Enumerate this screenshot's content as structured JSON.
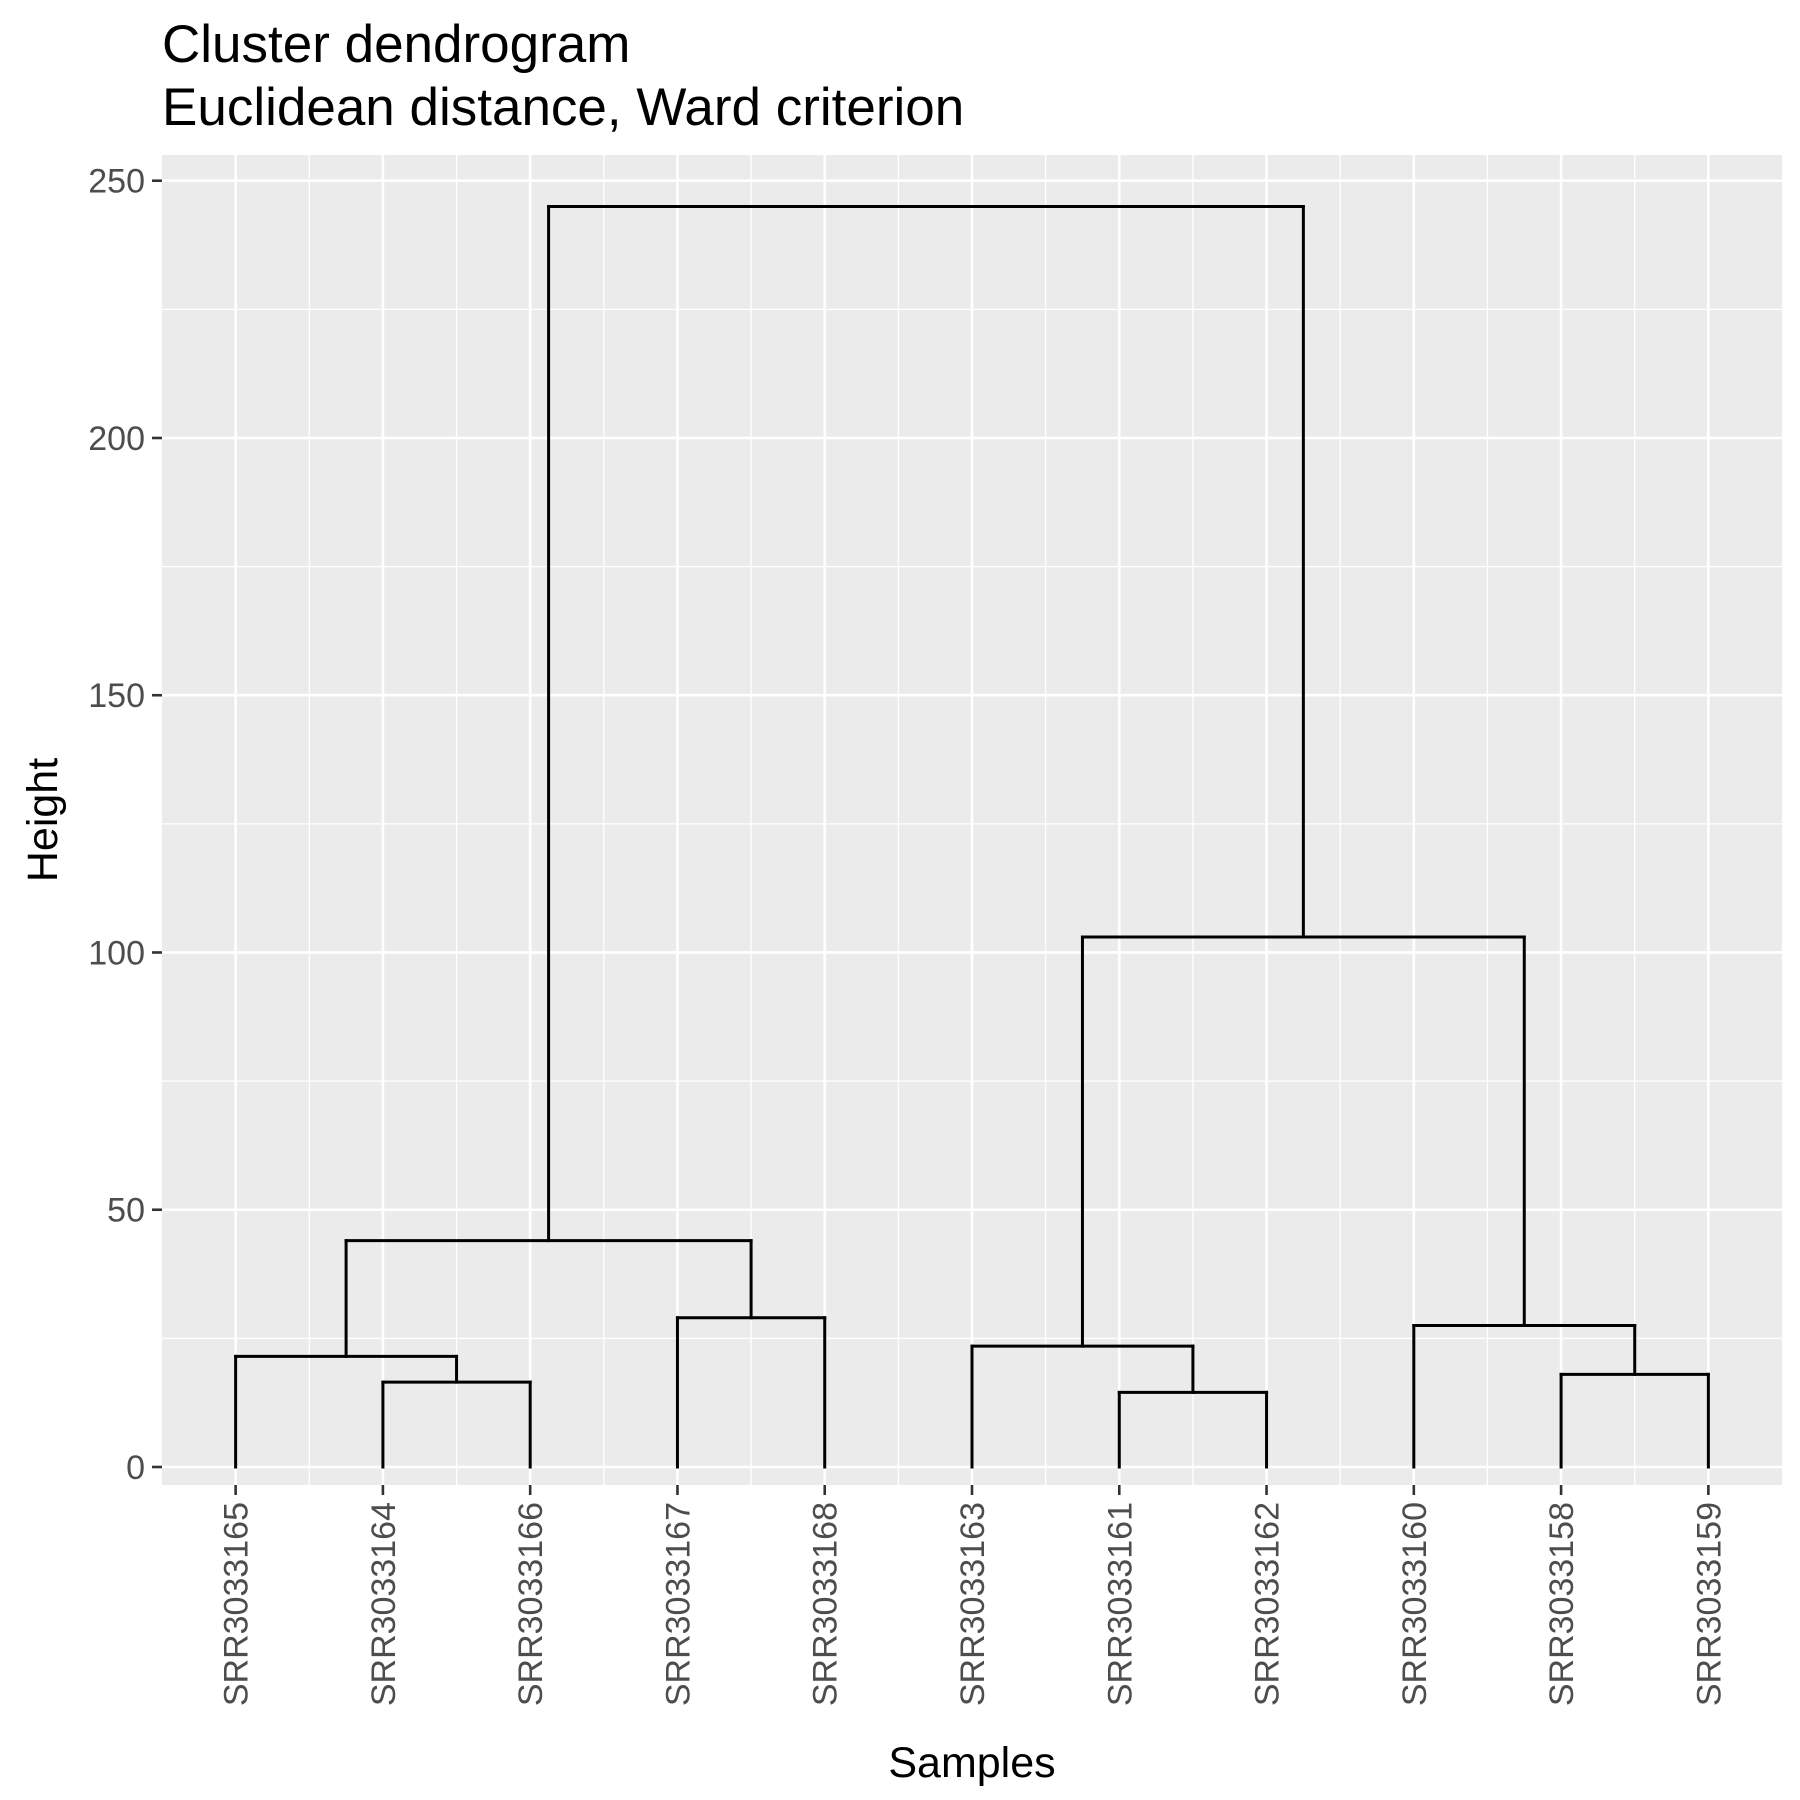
{
  "chart_data": {
    "type": "dendrogram",
    "title": "Cluster dendrogram",
    "subtitle": "Euclidean distance, Ward criterion",
    "xlabel": "Samples",
    "ylabel": "Height",
    "ylim": [
      -3.5,
      255
    ],
    "yticks": [
      0,
      50,
      100,
      150,
      200,
      250
    ],
    "grid": true,
    "leaves": [
      "SRR3033165",
      "SRR3033164",
      "SRR3033166",
      "SRR3033167",
      "SRR3033168",
      "SRR3033163",
      "SRR3033161",
      "SRR3033162",
      "SRR3033160",
      "SRR3033158",
      "SRR3033159"
    ],
    "merges": [
      {
        "id": "m1",
        "children": [
          "SRR3033164",
          "SRR3033166"
        ],
        "height": 16.5
      },
      {
        "id": "m2",
        "children": [
          "SRR3033165",
          "m1"
        ],
        "height": 21.5
      },
      {
        "id": "m3",
        "children": [
          "SRR3033167",
          "SRR3033168"
        ],
        "height": 29.0
      },
      {
        "id": "m4",
        "children": [
          "m2",
          "m3"
        ],
        "height": 44.0
      },
      {
        "id": "m5",
        "children": [
          "SRR3033161",
          "SRR3033162"
        ],
        "height": 14.5
      },
      {
        "id": "m6",
        "children": [
          "SRR3033163",
          "m5"
        ],
        "height": 23.5
      },
      {
        "id": "m7",
        "children": [
          "SRR3033158",
          "SRR3033159"
        ],
        "height": 18.0
      },
      {
        "id": "m8",
        "children": [
          "SRR3033160",
          "m7"
        ],
        "height": 27.5
      },
      {
        "id": "m9",
        "children": [
          "m6",
          "m8"
        ],
        "height": 103.0
      },
      {
        "id": "m10",
        "children": [
          "m4",
          "m9"
        ],
        "height": 245.0
      }
    ],
    "colors": {
      "panel": "#ebebeb",
      "grid": "#ffffff",
      "branch": "#000000",
      "tick_label": "#4d4d4d"
    }
  }
}
